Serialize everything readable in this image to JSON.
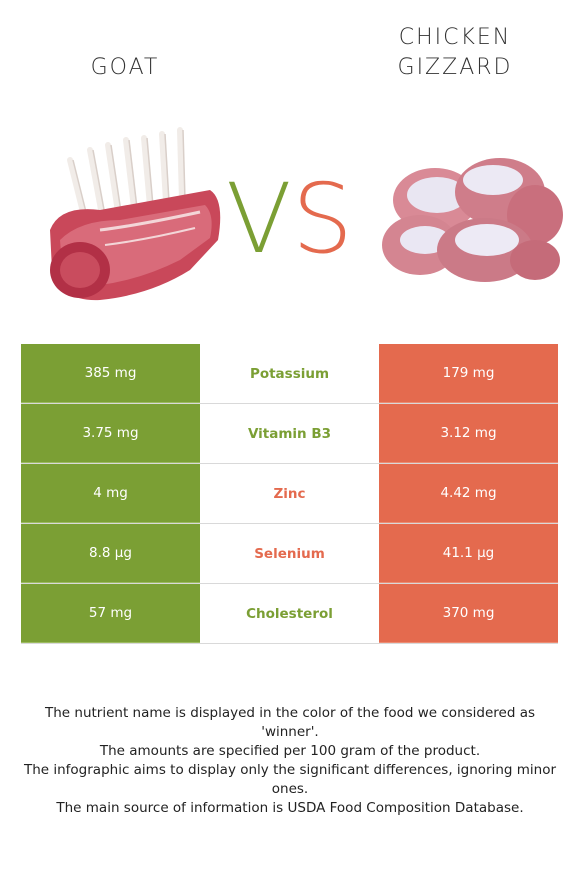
{
  "left_food": {
    "title": "GOAT",
    "color": "#7b9f34"
  },
  "right_food": {
    "title_line1": "CHICKEN",
    "title_line2": "GIZZARD",
    "color": "#e46a4e"
  },
  "vs": {
    "v": "V",
    "s": "S"
  },
  "nutrients": [
    {
      "name": "Potassium",
      "left": "385 mg",
      "right": "179 mg",
      "winner": "left",
      "winner_color": "#7b9f34"
    },
    {
      "name": "Vitamin B3",
      "left": "3.75 mg",
      "right": "3.12 mg",
      "winner": "left",
      "winner_color": "#7b9f34"
    },
    {
      "name": "Zinc",
      "left": "4 mg",
      "right": "4.42 mg",
      "winner": "right",
      "winner_color": "#e46a4e"
    },
    {
      "name": "Selenium",
      "left": "8.8 µg",
      "right": "41.1 µg",
      "winner": "right",
      "winner_color": "#e46a4e"
    },
    {
      "name": "Cholesterol",
      "left": "57 mg",
      "right": "370 mg",
      "winner": "left",
      "winner_color": "#7b9f34"
    }
  ],
  "footnote": {
    "line1": "The nutrient name is displayed in the color of the food we considered as 'winner'.",
    "line2": "The amounts are specified per 100 gram of the product.",
    "line3": "The infographic aims to display only the significant differences, ignoring minor ones.",
    "line4": "The main source of information is USDA Food Composition Database."
  }
}
